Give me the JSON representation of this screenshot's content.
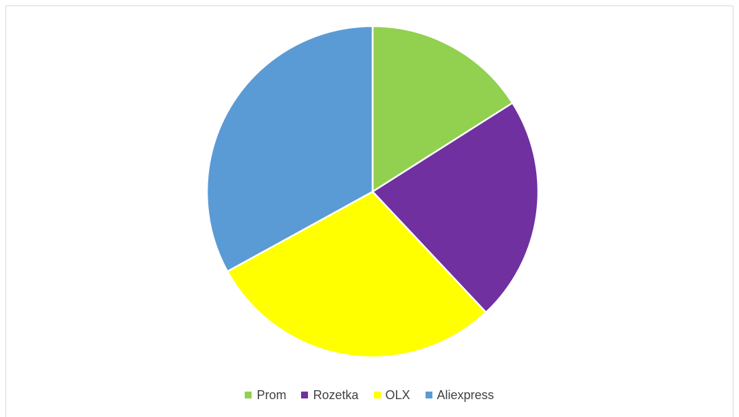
{
  "chart_data": {
    "type": "pie",
    "title": "",
    "categories": [
      "Prom",
      "Rozetka",
      "OLX",
      "Aliexpress"
    ],
    "values": [
      16,
      22,
      29,
      33
    ],
    "colors": [
      "#92d050",
      "#7030a0",
      "#ffff00",
      "#5b9bd5"
    ],
    "start": "top",
    "direction": "clockwise",
    "legend_position": "bottom"
  },
  "legend": {
    "items": [
      {
        "label": "Prom",
        "color": "#92d050"
      },
      {
        "label": "Rozetka",
        "color": "#7030a0"
      },
      {
        "label": "OLX",
        "color": "#ffff00"
      },
      {
        "label": "Aliexpress",
        "color": "#5b9bd5"
      }
    ]
  }
}
